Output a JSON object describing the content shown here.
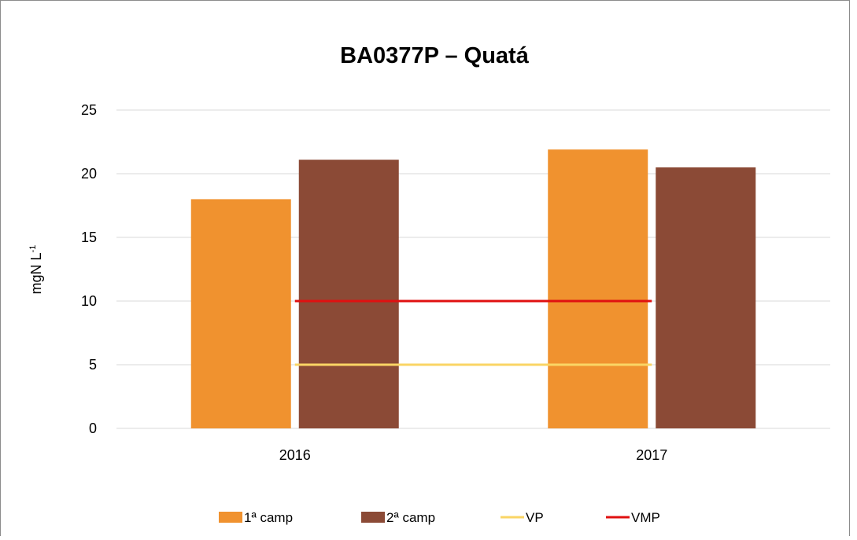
{
  "chart_data": {
    "type": "bar",
    "title": "BA0377P – Quatá",
    "y_label": "mgN L",
    "y_label_sup": "-1",
    "categories": [
      "2016",
      "2017"
    ],
    "series": [
      {
        "name": "1ª camp",
        "type": "bar",
        "color": "#f0922f",
        "values": [
          18,
          21.9
        ]
      },
      {
        "name": "2ª camp",
        "type": "bar",
        "color": "#8b4a36",
        "values": [
          21.1,
          20.5
        ]
      },
      {
        "name": "VP",
        "type": "line",
        "color": "#fad565",
        "values": [
          5,
          5
        ]
      },
      {
        "name": "VMP",
        "type": "line",
        "color": "#e01010",
        "values": [
          10,
          10
        ]
      }
    ],
    "ylim": [
      0,
      25
    ],
    "yticks": [
      0,
      5,
      10,
      15,
      20,
      25
    ],
    "grid": true,
    "legend": "bottom"
  }
}
